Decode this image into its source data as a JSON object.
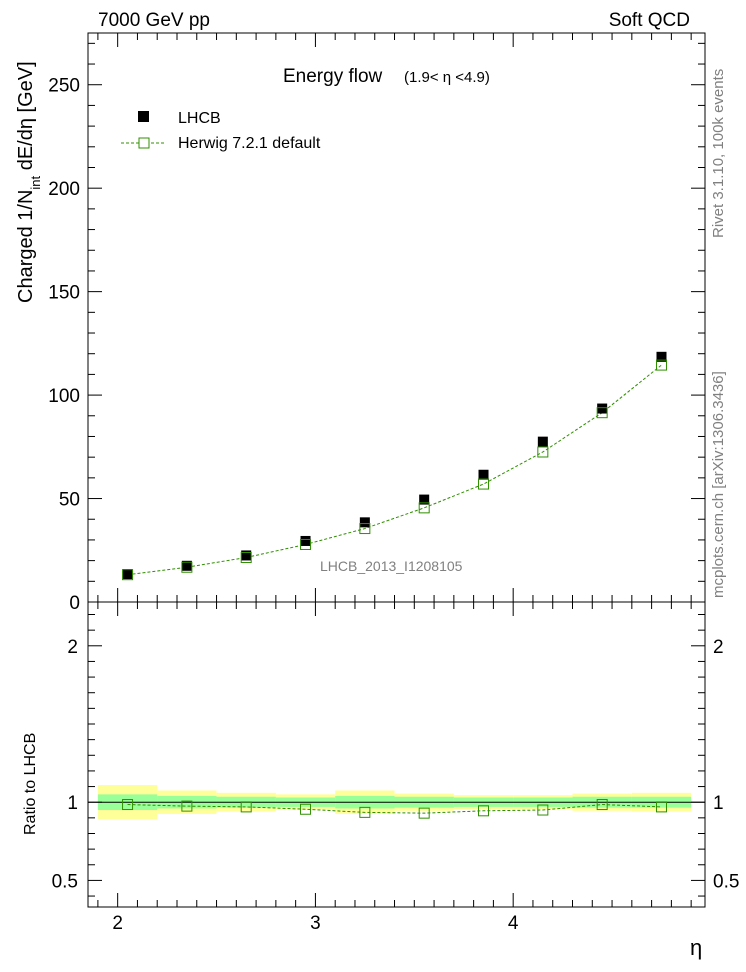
{
  "header": {
    "left": "7000 GeV pp",
    "right": "Soft QCD"
  },
  "side": {
    "rivet": "Rivet 3.1.10,  100k events",
    "mcplots": "mcplots.cern.ch [arXiv:1306.3436]"
  },
  "chart_data": [
    {
      "type": "scatter",
      "title": "Energy flow",
      "subtitle": "(1.9< η <4.9)",
      "analysis_label": "LHCB_2013_I1208105",
      "ylabel": "Charged 1/N_int dE/dη [GeV]",
      "ylabel_main": "Charged 1/N",
      "ylabel_sub": "int",
      "ylabel_tail": " dE/dη [GeV]",
      "xlim": [
        1.85,
        4.97
      ],
      "ylim": [
        0,
        275
      ],
      "yticks": [
        0,
        50,
        100,
        150,
        200,
        250
      ],
      "yticklabels": [
        "0",
        "50",
        "100",
        "150",
        "200",
        "250"
      ],
      "legend_position": "top-left",
      "legend": [
        "LHCB",
        "Herwig 7.2.1 default"
      ],
      "x": [
        2.05,
        2.35,
        2.65,
        2.95,
        3.25,
        3.55,
        3.85,
        4.15,
        4.45,
        4.75
      ],
      "bin_edges": [
        1.9,
        2.2,
        2.5,
        2.8,
        3.1,
        3.4,
        3.7,
        4.0,
        4.3,
        4.6,
        4.9
      ],
      "series": [
        {
          "name": "LHCB",
          "color": "#000000",
          "marker": "filled-square",
          "values": [
            13.5,
            17.5,
            22.5,
            29.5,
            38.5,
            49.5,
            61.5,
            77.5,
            93.5,
            118.5
          ]
        },
        {
          "name": "Herwig 7.2.1 default",
          "color": "#2f8f00",
          "marker": "open-square",
          "values": [
            13.2,
            16.8,
            21.5,
            27.8,
            35.5,
            45.5,
            57.0,
            72.5,
            91.5,
            114.5
          ]
        }
      ]
    },
    {
      "type": "scatter",
      "xlabel": "η",
      "ylabel": "Ratio to LHCB",
      "xlim": [
        1.85,
        4.97
      ],
      "ylim": [
        0.33,
        2.28
      ],
      "xticks": [
        2,
        3,
        4
      ],
      "xticklabels": [
        "2",
        "3",
        "4"
      ],
      "yticks": [
        0.5,
        1,
        2
      ],
      "yticklabels": [
        "0.5",
        "1",
        "2"
      ],
      "bands": {
        "bin_edges": [
          1.9,
          2.2,
          2.5,
          2.8,
          3.1,
          3.4,
          3.7,
          4.0,
          4.3,
          4.6,
          4.9
        ],
        "yellow_color": "#ffff99",
        "green_color": "#99ff99",
        "yellow_halfwidth": [
          0.11,
          0.075,
          0.06,
          0.05,
          0.075,
          0.055,
          0.045,
          0.045,
          0.055,
          0.06
        ],
        "green_halfwidth": [
          0.05,
          0.04,
          0.035,
          0.03,
          0.04,
          0.035,
          0.03,
          0.03,
          0.035,
          0.035
        ]
      },
      "series": [
        {
          "name": "Herwig 7.2.1 default",
          "color": "#2f8f00",
          "marker": "open-square",
          "x": [
            2.05,
            2.35,
            2.65,
            2.95,
            3.25,
            3.55,
            3.85,
            4.15,
            4.45,
            4.75
          ],
          "values": [
            0.985,
            0.975,
            0.97,
            0.955,
            0.935,
            0.93,
            0.945,
            0.95,
            0.985,
            0.97
          ]
        }
      ]
    }
  ]
}
